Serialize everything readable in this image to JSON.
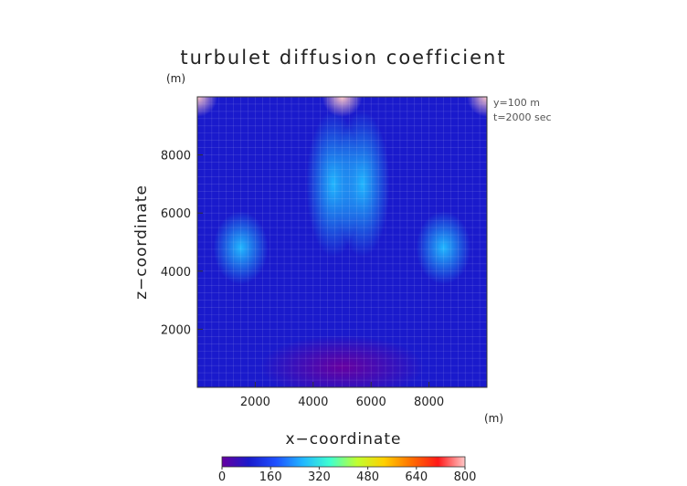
{
  "chart_data": {
    "type": "heatmap",
    "title": "turbulet diffusion coefficient",
    "xlabel": "x−coordinate",
    "ylabel": "z−coordinate",
    "x_unit": "(m)",
    "y_unit": "(m)",
    "xlim": [
      0,
      10000
    ],
    "ylim": [
      0,
      10000
    ],
    "x_ticks": [
      "2000",
      "4000",
      "6000",
      "8000"
    ],
    "y_ticks": [
      "2000",
      "4000",
      "6000",
      "8000"
    ],
    "annotations": [
      "y=100  m",
      "t=2000 sec"
    ],
    "colorbar": {
      "min": 0,
      "max": 800,
      "ticks": [
        "0",
        "160",
        "320",
        "480",
        "640",
        "800"
      ],
      "colors": [
        "#6600a0",
        "#1a1acc",
        "#1e50ff",
        "#21b7ff",
        "#3fffd0",
        "#c0ff30",
        "#ffd000",
        "#ff7000",
        "#ff1818",
        "#ffc8c8"
      ]
    },
    "grid": true,
    "features": [
      {
        "name": "top-left corner maximum",
        "x": 0,
        "z": 10000,
        "value": 780
      },
      {
        "name": "top-center maximum",
        "x": 5000,
        "z": 10000,
        "value": 800
      },
      {
        "name": "top-right corner maximum",
        "x": 10000,
        "z": 10000,
        "value": 780
      },
      {
        "name": "central column",
        "x": 4700,
        "z": 7000,
        "value": 270
      },
      {
        "name": "central column",
        "x": 5700,
        "z": 7000,
        "value": 270
      },
      {
        "name": "left lobe",
        "x": 1500,
        "z": 4800,
        "value": 250
      },
      {
        "name": "right lobe",
        "x": 8500,
        "z": 4800,
        "value": 250
      },
      {
        "name": "lower region minimum",
        "x": 5000,
        "z": 700,
        "value": 10
      }
    ]
  }
}
